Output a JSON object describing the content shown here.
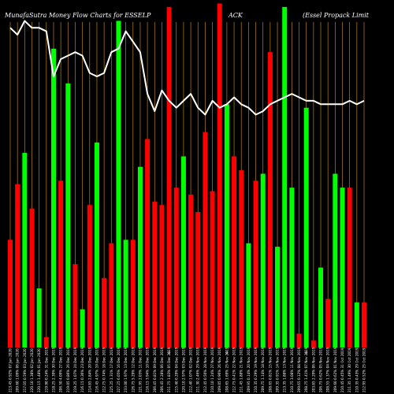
{
  "chart_data": {
    "type": "bar",
    "title": {
      "left": "MunafaSutra  Money Flow  Charts for ESSELP",
      "mid": "ACK",
      "right": "(Essel Propack Limit"
    },
    "categories": [
      "213.45 0.92% 07 Jan 2020",
      "209.60 1.09% 06 Jan 2020",
      "217.05 0.59% 03 Jan 2020",
      "220.10 1.38% 02 Jan 2020",
      "220.15 1.48% 01 Jan 2020",
      "219.90 0.24% 31 Dec 2019",
      "218.25 2.39% 30 Dec 2019",
      "206.50 4.09% 27 Dec 2019",
      "219.05 0.86% 26 Dec 2019",
      "219.25 1.07% 24 Dec 2019",
      "216.15 0.36% 23 Dec 2019",
      "214.85 2.84% 20 Dec 2019",
      "216.45 4.97% 19 Dec 2019",
      "212.75 0.74% 18 Dec 2019",
      "225.25 1.31% 17 Dec 2019",
      "227.25 6.05% 16 Dec 2019",
      "233.00 1.97% 13 Dec 2019",
      "226.75 5.29% 12 Dec 2019",
      "221.95 2.03% 11 Dec 2019",
      "216.15 3.94% 10 Dec 2019",
      "206.45 0.81% 09 Dec 2019",
      "206.45 2.28% 06 Dec 2019",
      "211.75 1.83% 05 Dec 2019",
      "215.40 0.29% 04 Dec 2019",
      "220.10 2.97% 03 Dec 2019",
      "212.40 1.07% 02 Dec 2019",
      "211.30 2.46% 29 Nov 2019",
      "212.45 0.50% 28 Nov 2019",
      "210.10 1.24% 27 Nov 2019",
      "209.05 0.96% 26 Nov 2019",
      "208.65 1.69% 25 Nov 2019",
      "212.75 0.41% 22 Nov 2019",
      "211.45 1.88% 21 Nov 2019",
      "209.95 0.14% 20 Nov 2019",
      "210.35 0.29% 19 Nov 2019",
      "209.75 1.14% 18 Nov 2019",
      "208.65 0.81% 15 Nov 2019",
      "209.35 0.91% 14 Nov 2019",
      "213.35 1.88% 13 Nov 2019",
      "210.75 3.08% 11 Nov 2019",
      "209.65 0.12% 08 Nov 2019",
      "208.75 1.41% 07 Nov 2019",
      "203.85 2.29% 06 Nov 2019",
      "206.75 0.62% 05 Nov 2019",
      "208.55 1.37% 04 Nov 2019",
      "209.60 0.62% 01 Nov 2019",
      "210.45 0.45% 31 Oct 2019",
      "211.35 1.49% 30 Oct 2019",
      "210.35 0.43% 29 Oct 2019",
      "212.95 0.52% 25 Oct 2019"
    ],
    "series": [
      {
        "colors": [
          "red",
          "red",
          "green",
          "red",
          "green",
          "red",
          "green",
          "red",
          "green",
          "red",
          "green",
          "red",
          "green",
          "red",
          "red",
          "green",
          "green",
          "red",
          "green",
          "red",
          "red",
          "red",
          "red",
          "red",
          "green",
          "red",
          "red",
          "red",
          "red",
          "red",
          "green",
          "red",
          "red",
          "green",
          "red",
          "green",
          "red",
          "green",
          "green",
          "green",
          "red",
          "green",
          "red",
          "green",
          "red",
          "green",
          "green",
          "red",
          "green",
          "red"
        ],
        "values": [
          31,
          47,
          56,
          40,
          17,
          3,
          86,
          48,
          76,
          24,
          11,
          41,
          59,
          20,
          30,
          94,
          31,
          31,
          52,
          60,
          42,
          41,
          98,
          46,
          55,
          44,
          39,
          62,
          45,
          99,
          70,
          55,
          51,
          30,
          48,
          50,
          85,
          29,
          98,
          46,
          4,
          69,
          2,
          23,
          14,
          50,
          46,
          46,
          13,
          13
        ]
      }
    ],
    "line": [
      92,
      90,
      94,
      92,
      92,
      91,
      78,
      83,
      84,
      85,
      84,
      79,
      78,
      79,
      85,
      86,
      91,
      88,
      85,
      73,
      68,
      74,
      71,
      69,
      71,
      73,
      69,
      67,
      71,
      69,
      70,
      72,
      70,
      69,
      67,
      68,
      70,
      71,
      72,
      73,
      72,
      71,
      71,
      70,
      70,
      70,
      70,
      71,
      70,
      71
    ],
    "bar_marks": {
      "22": "d",
      "30": "d",
      "41": "d"
    },
    "ylim": [
      0,
      100
    ],
    "grid": true,
    "colors": {
      "up": "#00ff00",
      "down": "#ff0000",
      "grid": "#b8860b",
      "line": "#ffffff",
      "background": "#000000"
    }
  }
}
